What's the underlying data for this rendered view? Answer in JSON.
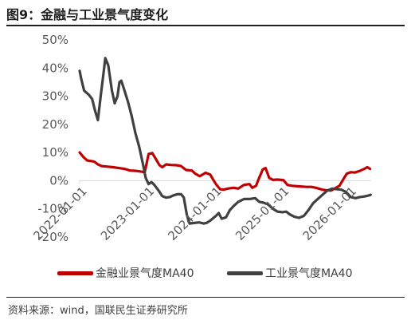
{
  "header": {
    "title": "图9：金融与工业景气度变化"
  },
  "footer": {
    "source": "资料来源：wind，国联民生证券研究所"
  },
  "colors": {
    "finance": "#c00000",
    "industry": "#404040",
    "axis": "#d9d9d9",
    "text": "#595959"
  },
  "chart_data": {
    "type": "line",
    "title": "图9：金融与工业景气度变化",
    "xlabel": "",
    "ylabel": "",
    "ylim": [
      -20,
      50
    ],
    "yticks": [
      -20,
      -10,
      0,
      10,
      20,
      30,
      40,
      50
    ],
    "ytick_labels": [
      "-20%",
      "-10%",
      "0%",
      "10%",
      "20%",
      "30%",
      "40%",
      "50%"
    ],
    "xlim": [
      "2022-01-01",
      "2026-05-01"
    ],
    "xticks": [
      "2022-01-01",
      "2023-01-01",
      "2024-01-01",
      "2025-01-01",
      "2026-01-01"
    ],
    "xtick_labels": [
      "2022-01-01",
      "2023-01-01",
      "2024-01-01",
      "2025-01-01",
      "2026-01-01"
    ],
    "grid": false,
    "legend_position": "bottom",
    "series": [
      {
        "name": "金融业景气度MA40",
        "color": "#c00000",
        "points": [
          [
            "2022-01-01",
            10
          ],
          [
            "2022-01-20",
            8.5
          ],
          [
            "2022-02-10",
            7.2
          ],
          [
            "2022-03-01",
            7
          ],
          [
            "2022-03-20",
            6.8
          ],
          [
            "2022-04-10",
            5.8
          ],
          [
            "2022-05-01",
            5.2
          ],
          [
            "2022-06-01",
            5
          ],
          [
            "2022-07-01",
            4.8
          ],
          [
            "2022-08-01",
            4.5
          ],
          [
            "2022-09-01",
            4.2
          ],
          [
            "2022-10-01",
            3.6
          ],
          [
            "2022-11-01",
            3.5
          ],
          [
            "2022-12-01",
            3.2
          ],
          [
            "2022-12-20",
            3
          ],
          [
            "2023-01-10",
            9.5
          ],
          [
            "2023-01-30",
            9.8
          ],
          [
            "2023-02-20",
            7.5
          ],
          [
            "2023-03-10",
            5.5
          ],
          [
            "2023-03-25",
            4.8
          ],
          [
            "2023-04-15",
            5.8
          ],
          [
            "2023-05-10",
            5.6
          ],
          [
            "2023-06-10",
            5.5
          ],
          [
            "2023-07-05",
            5.2
          ],
          [
            "2023-08-01",
            3.8
          ],
          [
            "2023-09-01",
            3.6
          ],
          [
            "2023-09-20",
            2.5
          ],
          [
            "2023-10-15",
            1.6
          ],
          [
            "2023-11-15",
            2.8
          ],
          [
            "2023-12-10",
            2.2
          ],
          [
            "2023-12-25",
            0.5
          ],
          [
            "2024-01-10",
            -1.2
          ],
          [
            "2024-02-01",
            -3
          ],
          [
            "2024-02-20",
            -3.2
          ],
          [
            "2024-03-15",
            -2.8
          ],
          [
            "2024-04-15",
            -2.5
          ],
          [
            "2024-05-10",
            -2.8
          ],
          [
            "2024-06-10",
            -1.5
          ],
          [
            "2024-07-10",
            -1.2
          ],
          [
            "2024-07-25",
            -2.5
          ],
          [
            "2024-08-15",
            -1.8
          ],
          [
            "2024-08-25",
            0
          ],
          [
            "2024-09-20",
            4
          ],
          [
            "2024-10-05",
            4.5
          ],
          [
            "2024-10-25",
            1
          ],
          [
            "2024-11-15",
            0.3
          ],
          [
            "2024-12-10",
            0.4
          ],
          [
            "2025-01-10",
            0.2
          ],
          [
            "2025-02-01",
            -1.5
          ],
          [
            "2025-02-25",
            -1.8
          ],
          [
            "2025-04-01",
            -2
          ],
          [
            "2025-05-15",
            -2.2
          ],
          [
            "2025-06-10",
            -2.2
          ],
          [
            "2025-07-10",
            -2.6
          ],
          [
            "2025-08-10",
            -3.2
          ],
          [
            "2025-09-01",
            -3.4
          ],
          [
            "2025-09-25",
            -3.5
          ],
          [
            "2025-10-15",
            -2.8
          ],
          [
            "2025-11-10",
            -1.8
          ],
          [
            "2025-12-01",
            0.5
          ],
          [
            "2025-12-20",
            2.5
          ],
          [
            "2026-01-10",
            3
          ],
          [
            "2026-02-01",
            2.9
          ],
          [
            "2026-03-01",
            3.5
          ],
          [
            "2026-03-25",
            4.2
          ],
          [
            "2026-04-10",
            4.8
          ],
          [
            "2026-04-25",
            4.2
          ]
        ]
      },
      {
        "name": "工业景气度MA40",
        "color": "#404040",
        "points": [
          [
            "2022-01-01",
            39
          ],
          [
            "2022-01-10",
            36
          ],
          [
            "2022-01-25",
            32
          ],
          [
            "2022-02-20",
            30.5
          ],
          [
            "2022-03-10",
            29
          ],
          [
            "2022-03-25",
            25
          ],
          [
            "2022-04-10",
            21.5
          ],
          [
            "2022-04-25",
            30
          ],
          [
            "2022-05-10",
            38
          ],
          [
            "2022-05-20",
            43.5
          ],
          [
            "2022-06-05",
            41
          ],
          [
            "2022-06-25",
            32
          ],
          [
            "2022-07-10",
            27.5
          ],
          [
            "2022-07-25",
            30
          ],
          [
            "2022-08-05",
            35
          ],
          [
            "2022-08-15",
            35.5
          ],
          [
            "2022-09-01",
            32
          ],
          [
            "2022-09-20",
            28
          ],
          [
            "2022-10-10",
            23
          ],
          [
            "2022-10-30",
            17
          ],
          [
            "2022-11-20",
            12
          ],
          [
            "2022-12-10",
            6
          ],
          [
            "2022-12-25",
            1
          ],
          [
            "2023-01-10",
            -1.2
          ],
          [
            "2023-01-25",
            -0.5
          ],
          [
            "2023-02-10",
            -1.5
          ],
          [
            "2023-03-05",
            -3.5
          ],
          [
            "2023-03-25",
            -5.5
          ],
          [
            "2023-04-15",
            -6
          ],
          [
            "2023-05-05",
            -5.8
          ],
          [
            "2023-05-25",
            -5.2
          ],
          [
            "2023-06-15",
            -4.8
          ],
          [
            "2023-07-05",
            -4.8
          ],
          [
            "2023-07-20",
            -6
          ],
          [
            "2023-08-05",
            -12
          ],
          [
            "2023-08-20",
            -15.2
          ],
          [
            "2023-09-15",
            -15
          ],
          [
            "2023-10-10",
            -14.8
          ],
          [
            "2023-11-05",
            -15.2
          ],
          [
            "2023-11-20",
            -15
          ],
          [
            "2023-12-10",
            -14.2
          ],
          [
            "2024-01-10",
            -12.5
          ],
          [
            "2024-01-25",
            -11.5
          ],
          [
            "2024-02-10",
            -13.5
          ],
          [
            "2024-03-05",
            -13
          ],
          [
            "2024-03-25",
            -10.5
          ],
          [
            "2024-04-15",
            -9
          ],
          [
            "2024-05-10",
            -7.5
          ],
          [
            "2024-06-10",
            -6.5
          ],
          [
            "2024-07-10",
            -6.5
          ],
          [
            "2024-08-10",
            -6.2
          ],
          [
            "2024-09-01",
            -7.5
          ],
          [
            "2024-09-25",
            -7.8
          ],
          [
            "2024-10-20",
            -8.5
          ],
          [
            "2024-11-15",
            -10
          ],
          [
            "2024-12-10",
            -11
          ],
          [
            "2025-01-05",
            -11.2
          ],
          [
            "2025-01-25",
            -11
          ],
          [
            "2025-02-15",
            -12
          ],
          [
            "2025-03-10",
            -12.8
          ],
          [
            "2025-04-05",
            -13.2
          ],
          [
            "2025-05-01",
            -12.5
          ],
          [
            "2025-05-25",
            -10.5
          ],
          [
            "2025-06-20",
            -8
          ],
          [
            "2025-07-15",
            -6.5
          ],
          [
            "2025-08-10",
            -5
          ],
          [
            "2025-09-05",
            -3.5
          ],
          [
            "2025-10-01",
            -2.8
          ],
          [
            "2025-10-25",
            -3
          ],
          [
            "2025-11-20",
            -3.2
          ],
          [
            "2025-12-15",
            -4
          ],
          [
            "2026-01-10",
            -5.8
          ],
          [
            "2026-02-05",
            -6.2
          ],
          [
            "2026-03-01",
            -5.8
          ],
          [
            "2026-03-25",
            -5.6
          ],
          [
            "2026-04-20",
            -5.2
          ],
          [
            "2026-04-28",
            -5
          ]
        ]
      }
    ]
  }
}
